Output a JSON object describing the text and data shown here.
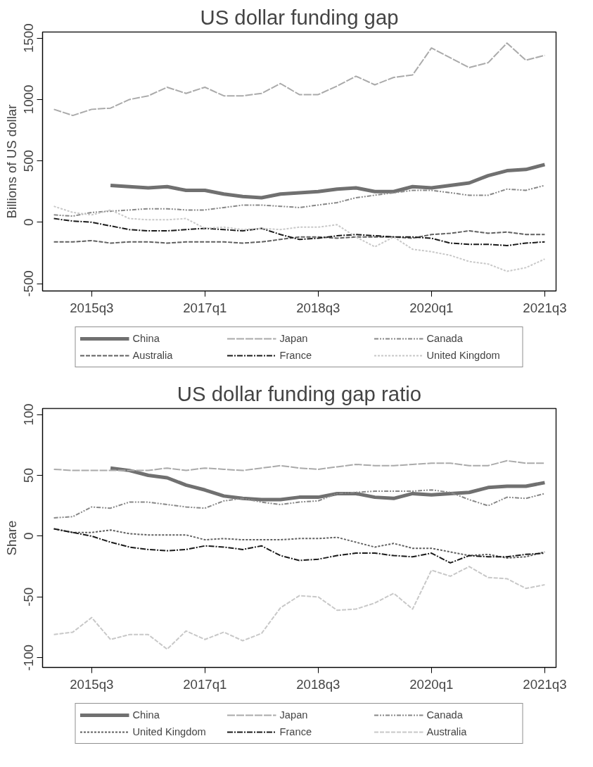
{
  "chart_data": [
    {
      "type": "line",
      "title": "US dollar funding gap",
      "ylabel": "Billions of US dollar",
      "categories": [
        null,
        null,
        "2015q3",
        null,
        null,
        null,
        null,
        null,
        "2017q1",
        null,
        null,
        null,
        null,
        null,
        "2018q3",
        null,
        null,
        null,
        null,
        null,
        "2020q1",
        null,
        null,
        null,
        null,
        null,
        "2021q3"
      ],
      "ylim": [
        -560,
        1550
      ],
      "yticks": [
        -500,
        0,
        500,
        1000,
        1500
      ],
      "grid": false,
      "legend": "bottom",
      "series": [
        {
          "name": "China",
          "color": "#707070",
          "line_style": "solid",
          "values": [
            null,
            null,
            null,
            300,
            290,
            280,
            290,
            260,
            260,
            230,
            210,
            200,
            230,
            240,
            250,
            270,
            280,
            250,
            250,
            290,
            280,
            300,
            320,
            380,
            420,
            430,
            470
          ]
        },
        {
          "name": "Japan",
          "color": "#aaaaaa",
          "line_style": "longdash",
          "values": [
            920,
            870,
            920,
            930,
            1000,
            1030,
            1100,
            1050,
            1100,
            1030,
            1030,
            1050,
            1130,
            1040,
            1040,
            1110,
            1190,
            1120,
            1180,
            1200,
            1420,
            1340,
            1260,
            1300,
            1460,
            1320,
            1360
          ]
        },
        {
          "name": "Canada",
          "color": "#888888",
          "line_style": "dashdotdot",
          "values": [
            60,
            50,
            80,
            90,
            100,
            110,
            110,
            100,
            100,
            120,
            140,
            140,
            130,
            120,
            140,
            160,
            200,
            220,
            240,
            260,
            260,
            240,
            220,
            220,
            270,
            260,
            300
          ]
        },
        {
          "name": "Australia",
          "color": "#606060",
          "line_style": "dashed",
          "values": [
            -160,
            -160,
            -150,
            -170,
            -160,
            -160,
            -170,
            -160,
            -160,
            -160,
            -170,
            -160,
            -140,
            -120,
            -120,
            -130,
            -120,
            -120,
            -120,
            -130,
            -100,
            -90,
            -70,
            -90,
            -80,
            -100,
            -100
          ]
        },
        {
          "name": "France",
          "color": "#1a1a1a",
          "line_style": "dashdot",
          "values": [
            30,
            10,
            0,
            -30,
            -60,
            -70,
            -70,
            -60,
            -50,
            -60,
            -70,
            -50,
            -100,
            -140,
            -130,
            -110,
            -100,
            -110,
            -120,
            -120,
            -130,
            -170,
            -180,
            -180,
            -190,
            -170,
            -160
          ]
        },
        {
          "name": "United Kingdom",
          "color": "#c8c8c8",
          "line_style": "dotted",
          "values": [
            130,
            80,
            60,
            100,
            30,
            20,
            20,
            30,
            -50,
            -40,
            -60,
            -50,
            -60,
            -40,
            -40,
            -20,
            -120,
            -200,
            -120,
            -220,
            -240,
            -270,
            -320,
            -340,
            -400,
            -370,
            -300
          ]
        }
      ]
    },
    {
      "type": "line",
      "title": "US dollar funding gap ratio",
      "ylabel": "Share",
      "categories": [
        null,
        null,
        "2015q3",
        null,
        null,
        null,
        null,
        null,
        "2017q1",
        null,
        null,
        null,
        null,
        null,
        "2018q3",
        null,
        null,
        null,
        null,
        null,
        "2020q1",
        null,
        null,
        null,
        null,
        null,
        "2021q3"
      ],
      "ylim": [
        -108,
        105
      ],
      "yticks": [
        -100,
        -50,
        0,
        50,
        100
      ],
      "grid": false,
      "legend": "bottom",
      "series": [
        {
          "name": "China",
          "color": "#707070",
          "line_style": "solid",
          "values": [
            null,
            null,
            null,
            56,
            54,
            50,
            48,
            42,
            38,
            33,
            31,
            30,
            30,
            32,
            32,
            35,
            35,
            32,
            31,
            35,
            34,
            35,
            36,
            40,
            41,
            41,
            44
          ]
        },
        {
          "name": "Japan",
          "color": "#aaaaaa",
          "line_style": "longdash",
          "values": [
            55,
            54,
            54,
            54,
            54,
            54,
            56,
            54,
            56,
            55,
            54,
            56,
            58,
            56,
            55,
            57,
            59,
            58,
            58,
            59,
            60,
            60,
            58,
            58,
            62,
            60,
            60
          ]
        },
        {
          "name": "Canada",
          "color": "#888888",
          "line_style": "dashdotdot",
          "values": [
            15,
            16,
            24,
            23,
            28,
            28,
            26,
            24,
            23,
            29,
            31,
            28,
            26,
            28,
            29,
            35,
            36,
            37,
            37,
            37,
            38,
            36,
            30,
            25,
            32,
            31,
            35
          ]
        },
        {
          "name": "United Kingdom",
          "color": "#606060",
          "line_style": "dotted",
          "values": [
            6,
            3,
            3,
            5,
            2,
            1,
            1,
            1,
            -3,
            -2,
            -3,
            -3,
            -3,
            -2,
            -2,
            -1,
            -5,
            -9,
            -6,
            -10,
            -10,
            -13,
            -16,
            -15,
            -18,
            -17,
            -13
          ]
        },
        {
          "name": "France",
          "color": "#1a1a1a",
          "line_style": "dashdot",
          "values": [
            6,
            3,
            0,
            -5,
            -9,
            -11,
            -12,
            -11,
            -8,
            -9,
            -11,
            -8,
            -16,
            -20,
            -19,
            -16,
            -14,
            -14,
            -16,
            -17,
            -14,
            -22,
            -16,
            -17,
            -17,
            -15,
            -14
          ]
        },
        {
          "name": "Australia",
          "color": "#c8c8c8",
          "line_style": "dashed",
          "values": [
            -81,
            -79,
            -67,
            -85,
            -81,
            -81,
            -93,
            -78,
            -85,
            -79,
            -86,
            -80,
            -59,
            -49,
            -50,
            -61,
            -60,
            -55,
            -47,
            -60,
            -28,
            -33,
            -25,
            -34,
            -35,
            -43,
            -40
          ]
        }
      ]
    }
  ]
}
